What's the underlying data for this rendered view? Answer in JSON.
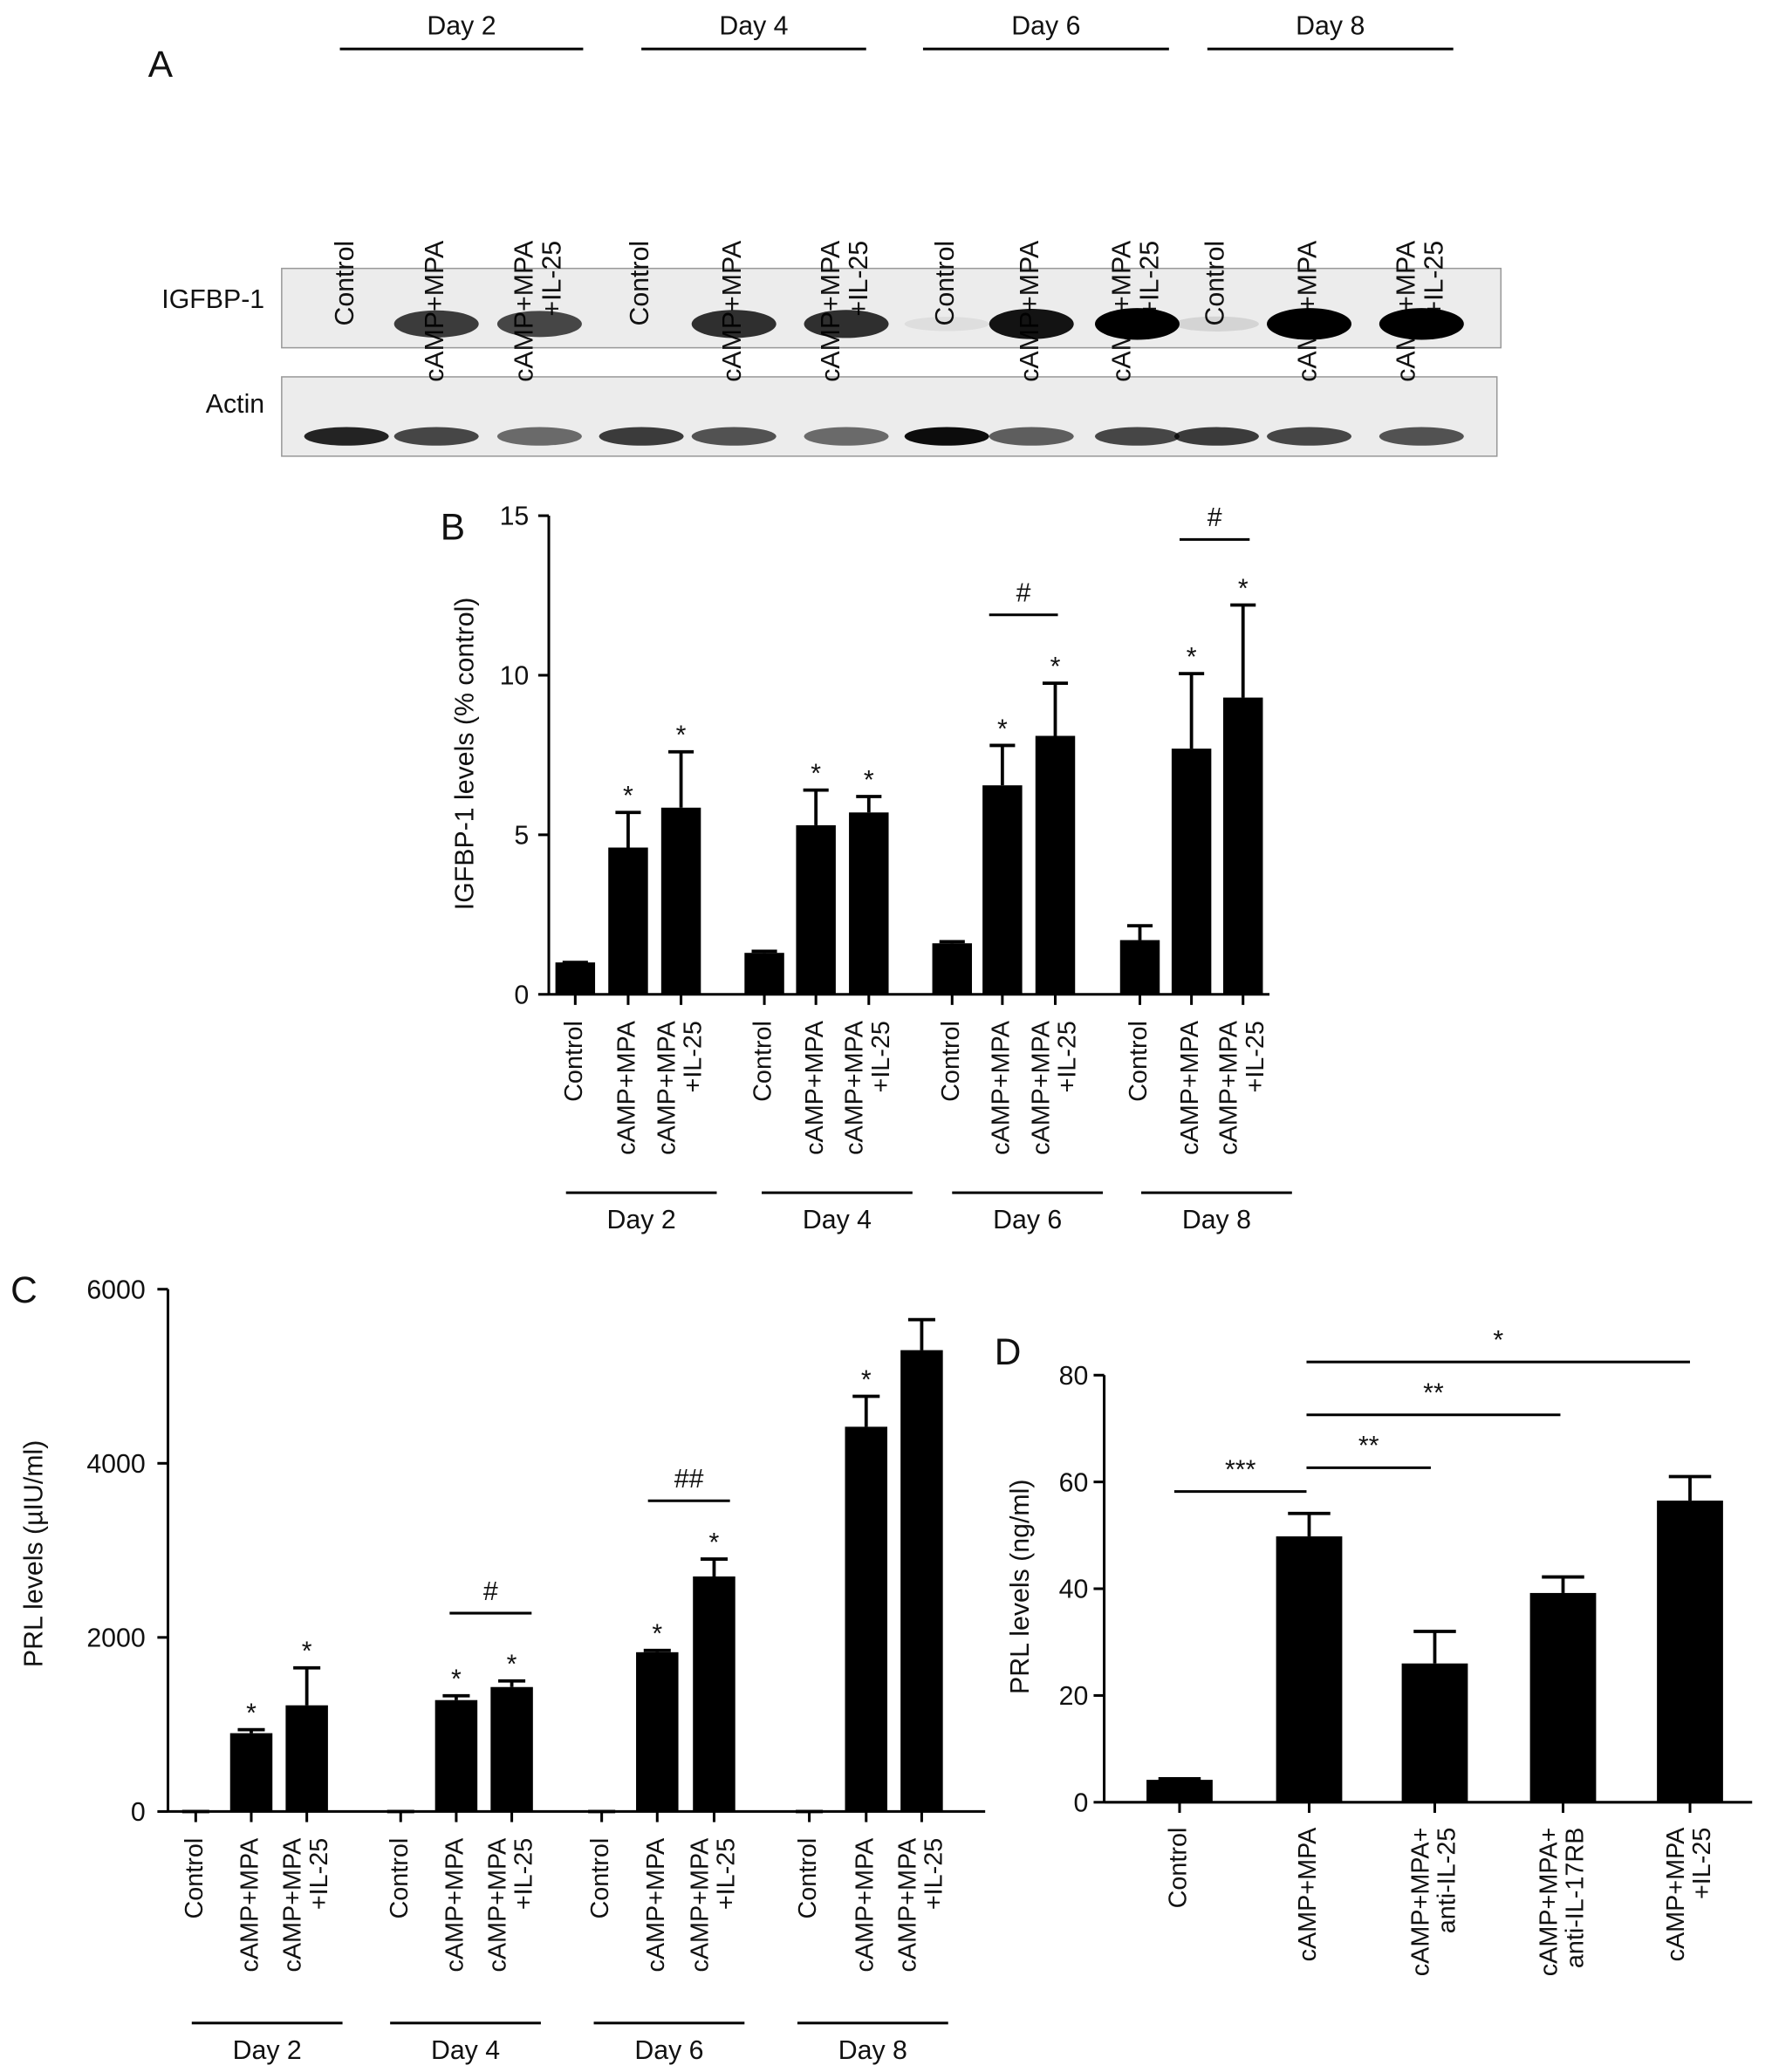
{
  "blot": {
    "label": "A",
    "days": [
      "Day 2",
      "Day 4",
      "Day 6",
      "Day 8"
    ],
    "lanes": [
      "Control",
      "cAMP+MPA",
      "cAMP+MPA +IL-25"
    ],
    "rows": [
      "IGFBP-1",
      "Actin"
    ]
  },
  "chart_data": [
    {
      "type": "bar",
      "label": "B",
      "ylabel": "IGFBP-1 levels (% control)",
      "categories": [
        "Day 2",
        "Day 4",
        "Day 6",
        "Day 8"
      ],
      "series": [
        {
          "name": "Control",
          "color": "#000000",
          "values": [
            1.0,
            1.3,
            1.6,
            1.7
          ],
          "errors": [
            0,
            0.05,
            0.05,
            0.45
          ]
        },
        {
          "name": "cAMP+MPA",
          "color": "#000000",
          "values": [
            4.6,
            5.3,
            6.55,
            7.7
          ],
          "errors": [
            1.1,
            1.1,
            1.25,
            2.35
          ],
          "labels": [
            "*",
            "*",
            "*",
            "*"
          ]
        },
        {
          "name": "cAMP+MPA +IL-25",
          "color": "#000000",
          "values": [
            5.85,
            5.7,
            8.1,
            9.3
          ],
          "errors": [
            1.75,
            0.5,
            1.65,
            2.9
          ],
          "labels": [
            "*",
            "*",
            "*",
            "*"
          ]
        }
      ],
      "ylim": [
        0,
        15
      ],
      "yticks": [
        0,
        5,
        10,
        15
      ],
      "annotations": [
        "#",
        "#"
      ]
    },
    {
      "type": "bar",
      "label": "C",
      "ylabel": "PRL levels (µIU/ml)",
      "categories": [
        "Day 2",
        "Day 4",
        "Day 6",
        "Day 8"
      ],
      "series": [
        {
          "name": "Control",
          "color": "#000000",
          "values": [
            0,
            0,
            0,
            0
          ],
          "errors": [
            0,
            0,
            0,
            0
          ]
        },
        {
          "name": "cAMP+MPA",
          "color": "#000000",
          "values": [
            900,
            1280,
            1830,
            4420
          ],
          "errors": [
            40,
            50,
            20,
            350
          ],
          "labels": [
            "*",
            "*",
            "*",
            "*"
          ]
        },
        {
          "name": "cAMP+MPA +IL-25",
          "color": "#000000",
          "values": [
            1220,
            1430,
            2700,
            5300
          ],
          "errors": [
            430,
            70,
            200,
            350
          ],
          "labels": [
            "*",
            "*",
            "*",
            null
          ]
        }
      ],
      "ylim": [
        0,
        6000
      ],
      "yticks": [
        0,
        2000,
        4000,
        6000
      ],
      "annotations": [
        "#",
        "##"
      ]
    },
    {
      "type": "bar",
      "label": "D",
      "ylabel": "PRL levels (ng/ml)",
      "categories": [
        "Control",
        "cAMP+MPA",
        "cAMP+MPA+ anti-IL-25",
        "cAMP+MPA+ anti-IL-17RB",
        "cAMP+MPA +IL-25"
      ],
      "values": [
        4.2,
        49.8,
        26,
        39.2,
        56.5
      ],
      "errors": [
        0.2,
        4.3,
        6,
        3,
        4.5
      ],
      "color": "#000000",
      "ylim": [
        0,
        80
      ],
      "yticks": [
        0,
        20,
        40,
        60,
        80
      ],
      "annotations": [
        "***",
        "**",
        "**",
        "*"
      ]
    }
  ]
}
